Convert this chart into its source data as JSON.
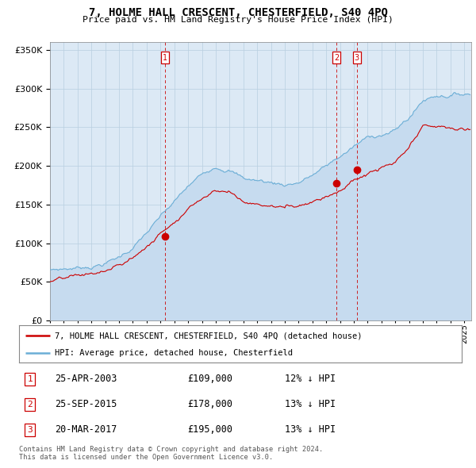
{
  "title": "7, HOLME HALL CRESCENT, CHESTERFIELD, S40 4PQ",
  "subtitle": "Price paid vs. HM Land Registry's House Price Index (HPI)",
  "legend_line1": "7, HOLME HALL CRESCENT, CHESTERFIELD, S40 4PQ (detached house)",
  "legend_line2": "HPI: Average price, detached house, Chesterfield",
  "footer1": "Contains HM Land Registry data © Crown copyright and database right 2024.",
  "footer2": "This data is licensed under the Open Government Licence v3.0.",
  "transactions": [
    {
      "num": 1,
      "date": "25-APR-2003",
      "price": 109000,
      "hpi_diff": "12% ↓ HPI"
    },
    {
      "num": 2,
      "date": "25-SEP-2015",
      "price": 178000,
      "hpi_diff": "13% ↓ HPI"
    },
    {
      "num": 3,
      "date": "20-MAR-2017",
      "price": 195000,
      "hpi_diff": "13% ↓ HPI"
    }
  ],
  "transaction_dates_decimal": [
    2003.32,
    2015.73,
    2017.22
  ],
  "transaction_prices": [
    109000,
    178000,
    195000
  ],
  "hpi_color": "#6baed6",
  "hpi_fill_color": "#c6dbef",
  "price_color": "#cc0000",
  "vline_color": "#cc0000",
  "bg_color": "#dce9f5",
  "grid_color": "#b8cfe0",
  "ylim": [
    0,
    360000
  ],
  "xlim_start": 1995.0,
  "xlim_end": 2025.5,
  "yticks": [
    0,
    50000,
    100000,
    150000,
    200000,
    250000,
    300000,
    350000
  ]
}
